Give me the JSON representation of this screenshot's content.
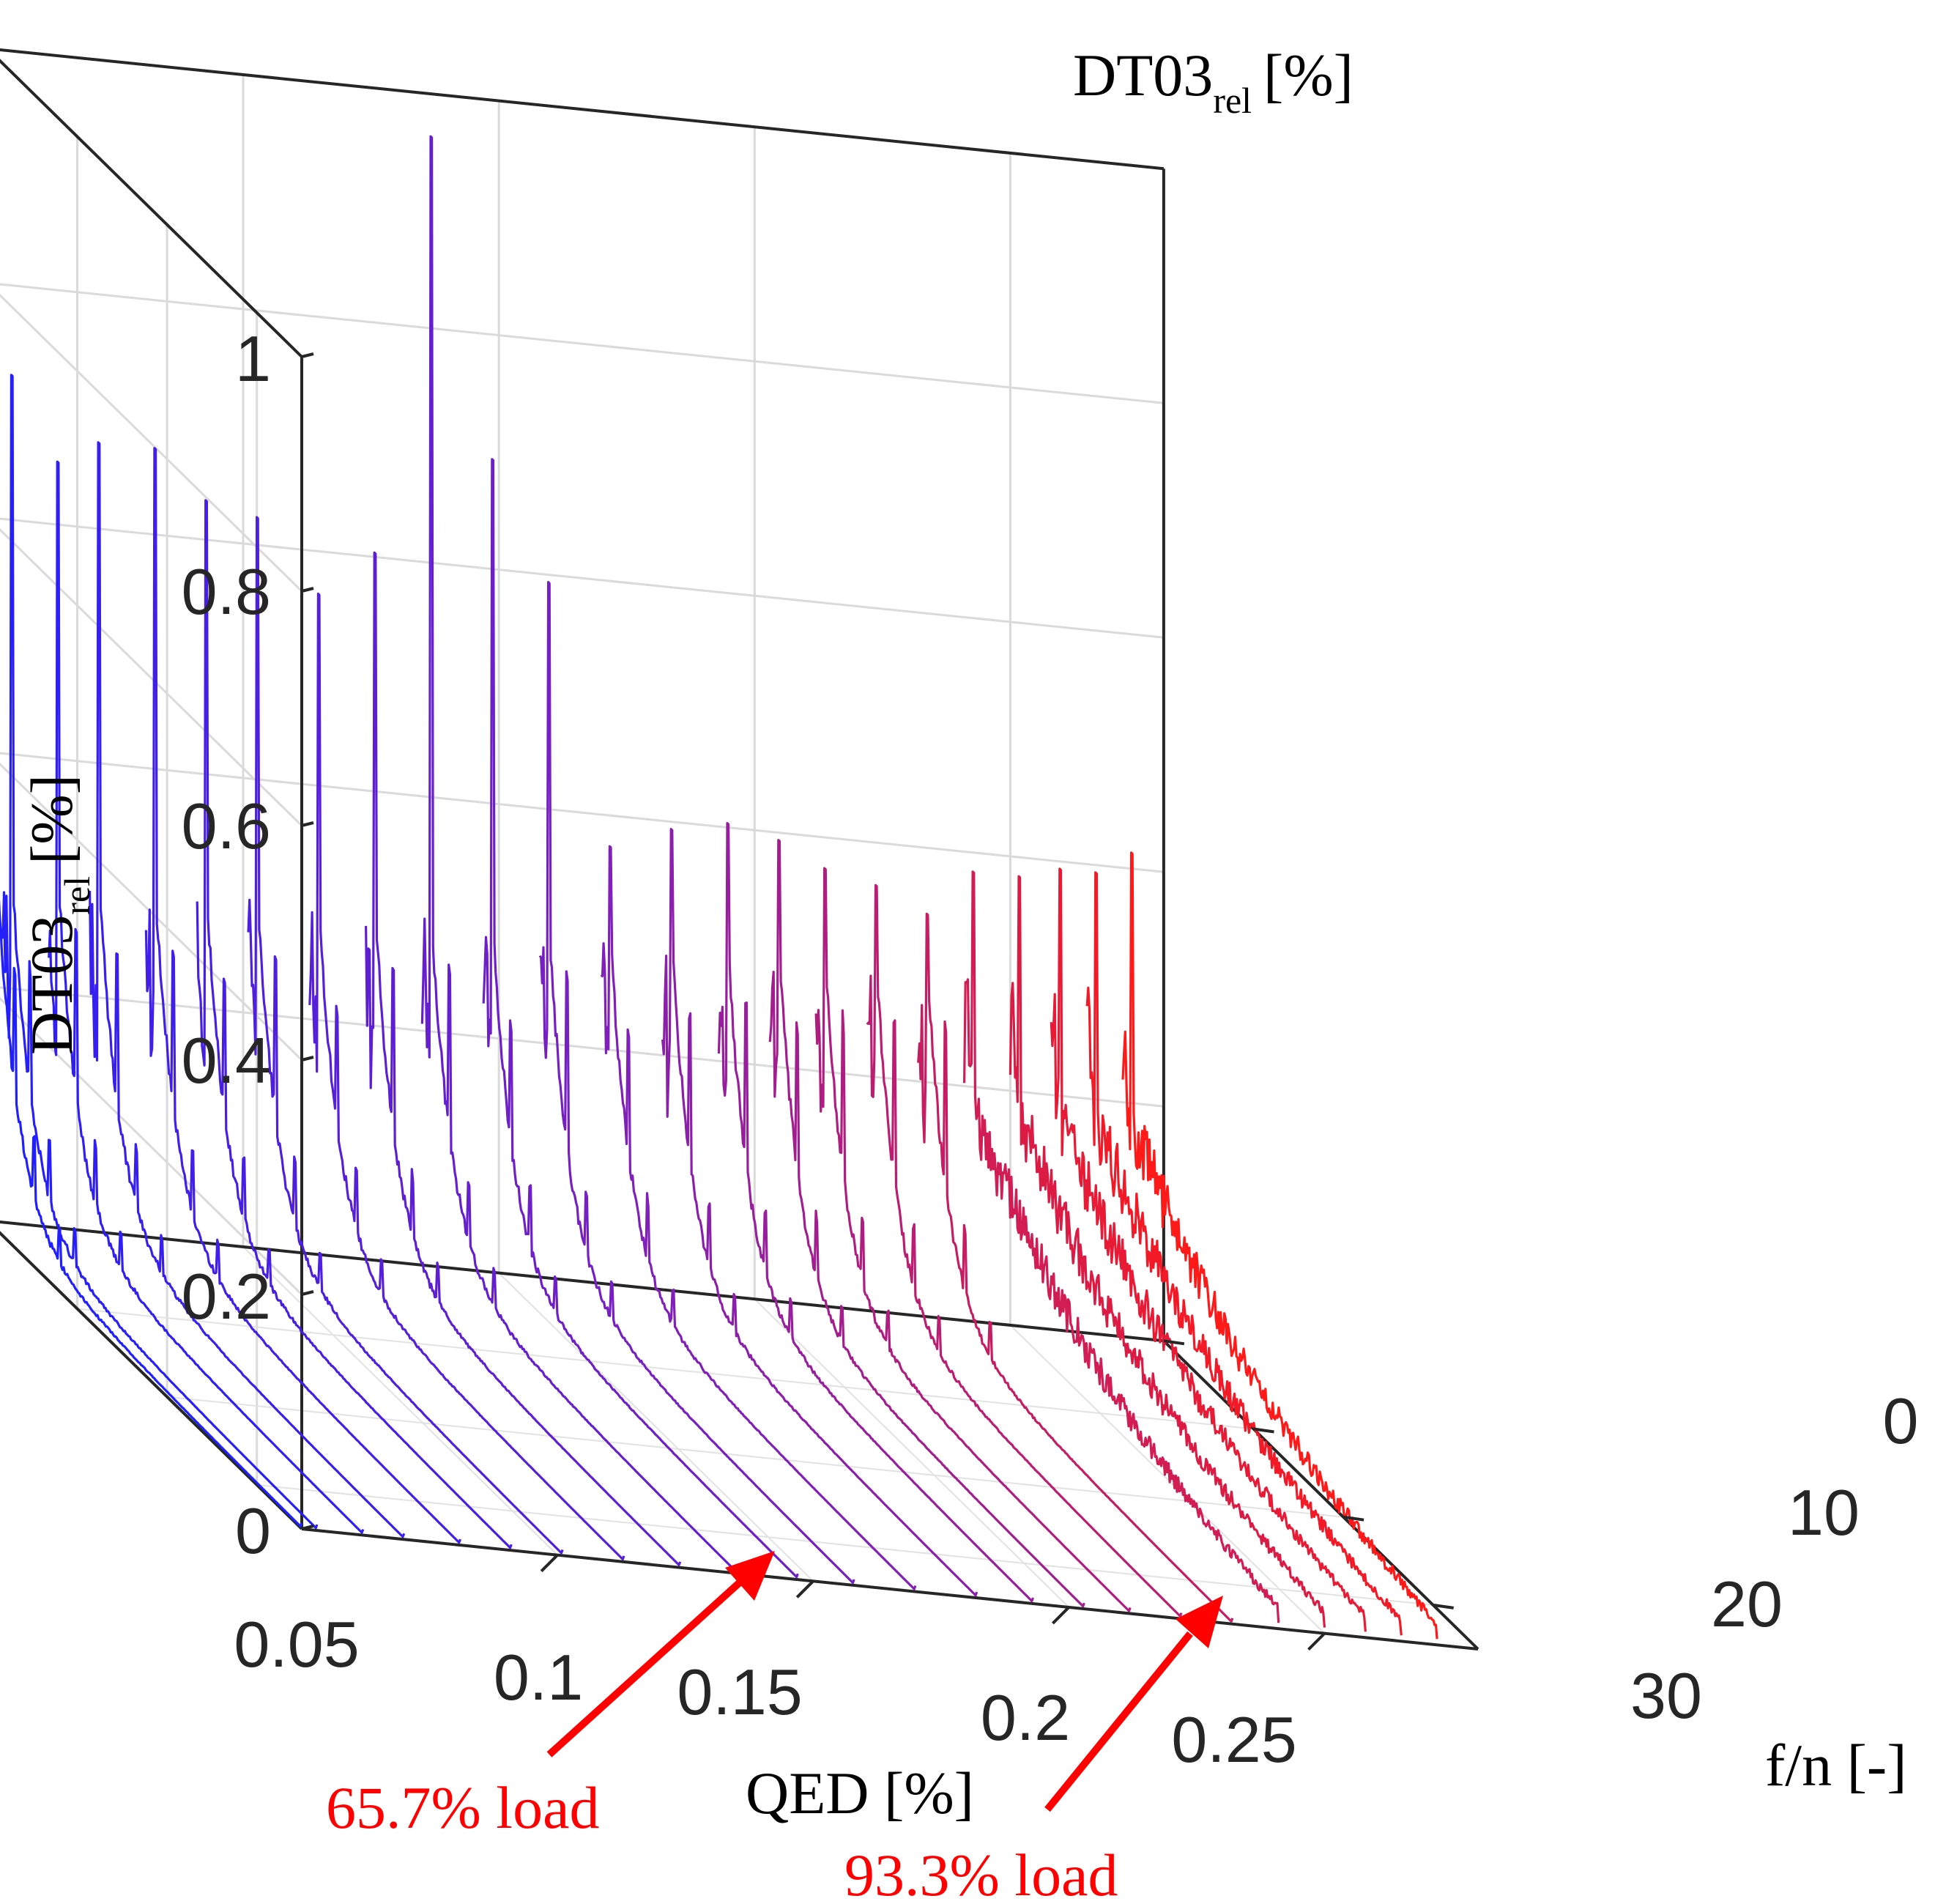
{
  "chart_data": {
    "type": "waterfall-3d",
    "title": "",
    "zlabel": "DT03",
    "zlabel_sub": "rel",
    "zlabel_unit": "[%]",
    "xlabel": "QED [%]",
    "ylabel": "f/n [-]",
    "z_ticks": [
      "0",
      "0.2",
      "0.4",
      "0.6",
      "0.8",
      "1"
    ],
    "x_ticks": [
      "0.05",
      "0.1",
      "0.15",
      "0.2",
      "0.25"
    ],
    "y_ticks": [
      "0",
      "10",
      "20",
      "30"
    ],
    "zlim": [
      0,
      1
    ],
    "xlim": [
      0.05,
      0.28
    ],
    "ylim": [
      0,
      35
    ],
    "color_low": "#1f1fff",
    "color_mid": "#7a1fc0",
    "color_high": "#ff1a1a",
    "series_qed": [
      0.05,
      0.053,
      0.062,
      0.07,
      0.081,
      0.091,
      0.101,
      0.113,
      0.124,
      0.135,
      0.147,
      0.158,
      0.17,
      0.182,
      0.193,
      0.203,
      0.212,
      0.222,
      0.232,
      0.241,
      0.25,
      0.258,
      0.265,
      0.272
    ],
    "peak_values": [
      0.78,
      0.73,
      0.66,
      0.68,
      0.68,
      0.64,
      0.63,
      0.57,
      0.61,
      0.97,
      0.7,
      0.6,
      0.38,
      0.4,
      0.41,
      0.4,
      0.38,
      0.37,
      0.35,
      0.39,
      0.39,
      0.4,
      0.4,
      0.42
    ],
    "peak_freq": 1.0,
    "annotations": [
      {
        "text": "65.7% load",
        "qed": 0.147,
        "color": "#ff0000"
      },
      {
        "text": "93.3% load",
        "qed": 0.241,
        "color": "#ff0000"
      }
    ]
  }
}
